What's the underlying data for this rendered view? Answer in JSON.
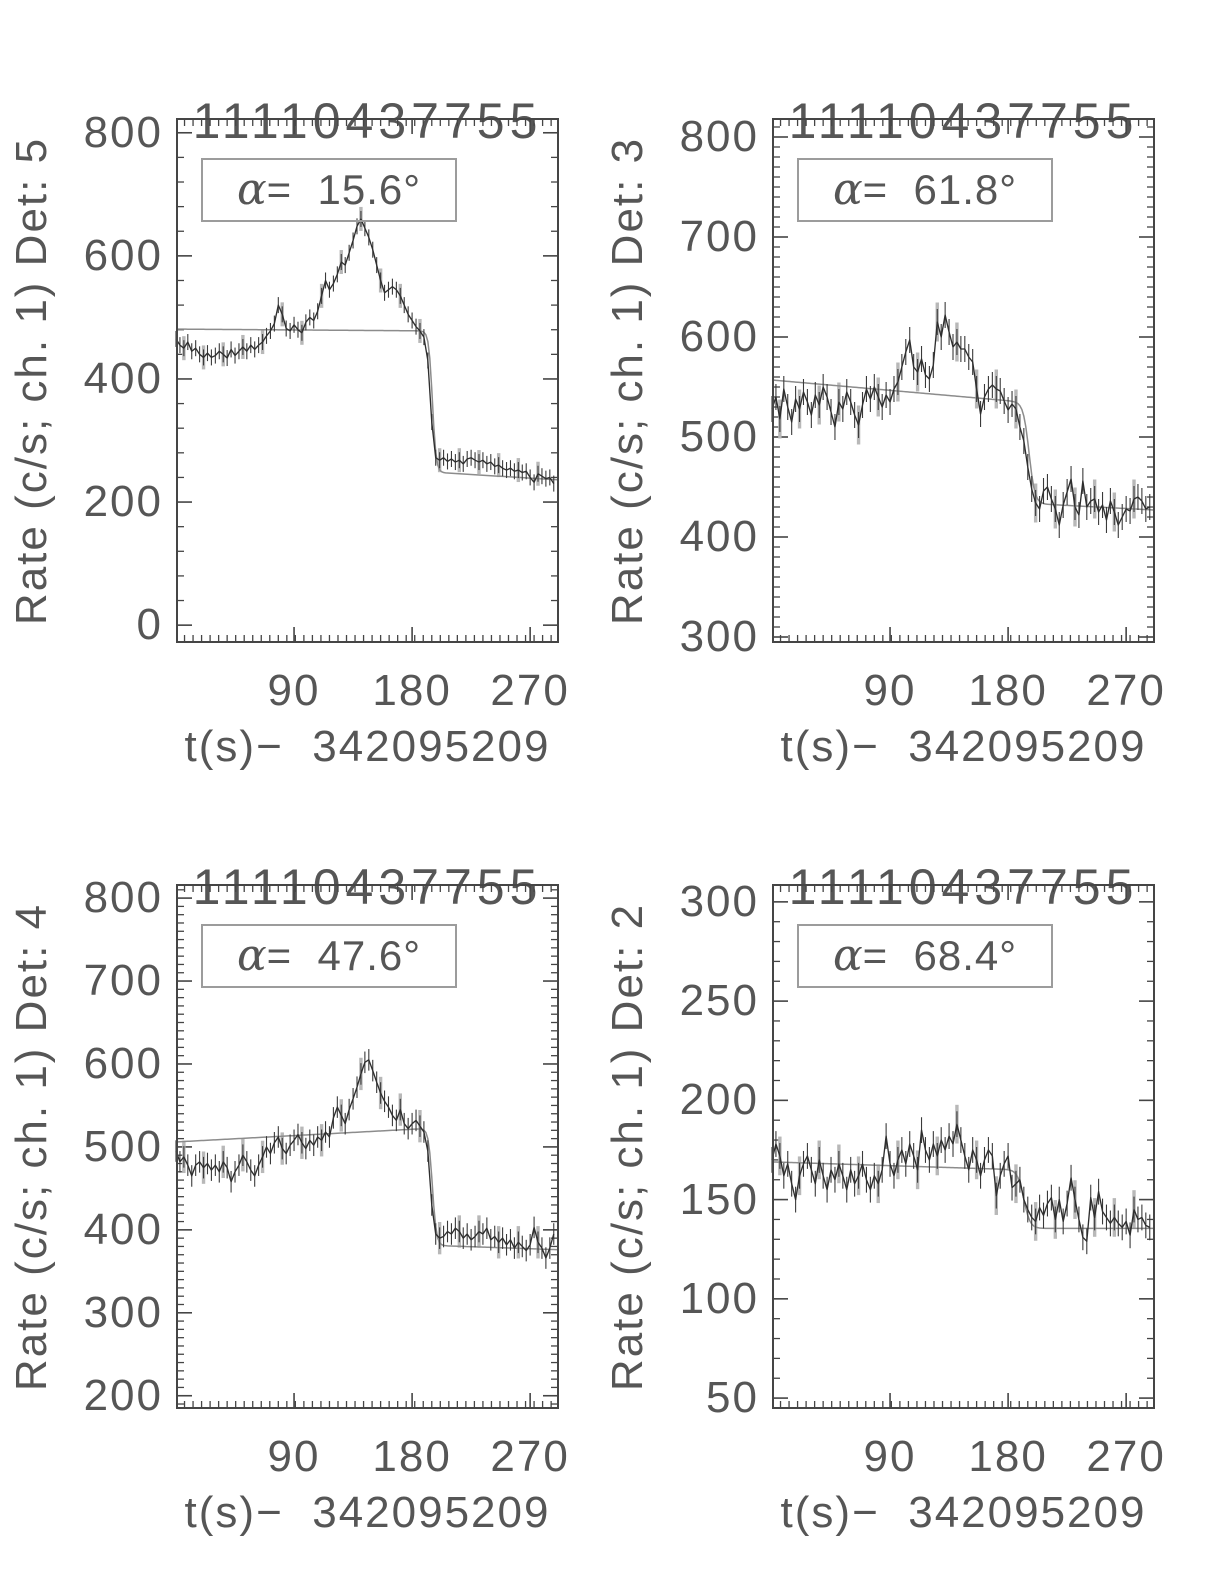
{
  "figure": {
    "background": "#ffffff",
    "text_color": "#565656",
    "axis_color": "#454545",
    "data_color": "#2e2e2e",
    "model_color": "#8c8c8c",
    "errorbar_color": "#3a3a3a",
    "errorbar_gray_color": "#b8b8b8"
  },
  "chart_data": [
    {
      "type": "line",
      "title": "11110437755",
      "ylabel": "Rate (c/s; ch. 1) Det: 5",
      "xlabel": "t(s)−  342095209",
      "detector": 5,
      "alpha_deg": 15.6,
      "annotation": {
        "symbol": "α",
        "text": "=  15.6°"
      },
      "xlim": [
        0,
        292
      ],
      "ylim": [
        -29,
        824
      ],
      "xticks": [
        90,
        180,
        270
      ],
      "yticks": [
        0,
        200,
        400,
        600,
        800
      ],
      "x_minor_step": 6.5,
      "y_minor_step": 40,
      "x_start": 0,
      "x_step": 3,
      "y_err": 13,
      "values": [
        465,
        455,
        450,
        460,
        445,
        450,
        440,
        435,
        442,
        435,
        438,
        445,
        440,
        434,
        448,
        438,
        445,
        452,
        445,
        455,
        448,
        455,
        460,
        470,
        478,
        490,
        520,
        505,
        482,
        478,
        488,
        480,
        475,
        492,
        500,
        495,
        510,
        535,
        560,
        545,
        555,
        570,
        590,
        585,
        605,
        625,
        648,
        660,
        645,
        630,
        610,
        585,
        560,
        540,
        545,
        550,
        545,
        535,
        520,
        505,
        495,
        485,
        478,
        468,
        430,
        330,
        272,
        268,
        272,
        266,
        270,
        265,
        268,
        262,
        270,
        272,
        268,
        265,
        268,
        262,
        265,
        258,
        260,
        255,
        252,
        255,
        250,
        252,
        248,
        250,
        240,
        232,
        246,
        242,
        238,
        240,
        230
      ],
      "model": {
        "pre_intercept": 481,
        "pre_slope": -0.015,
        "drop_center": 195.5,
        "drop_width": 1.4,
        "post_intercept": 274.1,
        "post_slope": -0.1304
      }
    },
    {
      "type": "line",
      "title": "11110437755",
      "ylabel": "Rate (c/s; ch. 1) Det: 3",
      "xlabel": "t(s)−  342095209",
      "detector": 3,
      "alpha_deg": 61.8,
      "annotation": {
        "symbol": "α",
        "text": "=  61.8°"
      },
      "xlim": [
        0,
        292
      ],
      "ylim": [
        294,
        819
      ],
      "xticks": [
        90,
        180,
        270
      ],
      "yticks": [
        300,
        400,
        500,
        600,
        700,
        800
      ],
      "x_minor_step": 6.5,
      "y_minor_step": 10,
      "x_start": 0,
      "x_step": 3,
      "y_err": 13,
      "values": [
        528,
        540,
        518,
        548,
        530,
        515,
        538,
        528,
        545,
        535,
        522,
        542,
        532,
        550,
        540,
        525,
        510,
        535,
        528,
        545,
        535,
        522,
        512,
        532,
        548,
        538,
        550,
        540,
        530,
        542,
        535,
        548,
        555,
        570,
        585,
        597,
        570,
        565,
        578,
        562,
        558,
        572,
        615,
        600,
        622,
        605,
        590,
        595,
        588,
        588,
        580,
        575,
        548,
        523,
        540,
        548,
        552,
        548,
        546,
        536,
        527,
        533,
        528,
        510,
        496,
        470,
        448,
        434,
        428,
        446,
        450,
        438,
        428,
        412,
        432,
        445,
        458,
        430,
        422,
        456,
        430,
        436,
        438,
        425,
        432,
        417,
        436,
        425,
        412,
        420,
        428,
        426,
        438,
        440,
        436,
        428,
        430
      ],
      "model": {
        "pre_intercept": 557,
        "pre_slope": -0.115,
        "drop_center": 196,
        "drop_width": 2.2,
        "post_intercept": 447.1,
        "post_slope": -0.069
      }
    },
    {
      "type": "line",
      "title": "11110437755",
      "ylabel": "Rate (c/s; ch. 1) Det: 4",
      "xlabel": "t(s)−  342095209",
      "detector": 4,
      "alpha_deg": 47.6,
      "annotation": {
        "symbol": "α",
        "text": "=  47.6°"
      },
      "xlim": [
        0,
        292
      ],
      "ylim": [
        184,
        817
      ],
      "xticks": [
        90,
        180,
        270
      ],
      "yticks": [
        200,
        300,
        400,
        500,
        600,
        700,
        800
      ],
      "x_minor_step": 6.5,
      "y_minor_step": 10,
      "x_start": 0,
      "x_step": 3,
      "y_err": 13,
      "values": [
        495,
        482,
        488,
        478,
        465,
        478,
        482,
        475,
        480,
        472,
        478,
        470,
        482,
        475,
        458,
        470,
        478,
        490,
        482,
        472,
        465,
        478,
        488,
        500,
        492,
        505,
        512,
        498,
        492,
        502,
        508,
        515,
        505,
        498,
        508,
        502,
        512,
        508,
        518,
        512,
        535,
        548,
        538,
        528,
        545,
        558,
        572,
        588,
        602,
        605,
        592,
        578,
        565,
        555,
        548,
        538,
        532,
        545,
        528,
        522,
        528,
        532,
        525,
        518,
        495,
        430,
        395,
        390,
        392,
        398,
        395,
        402,
        398,
        390,
        395,
        388,
        392,
        398,
        395,
        402,
        388,
        392,
        385,
        390,
        382,
        388,
        378,
        385,
        380,
        375,
        382,
        403,
        385,
        378,
        366,
        378,
        395
      ],
      "model": {
        "pre_intercept": 506,
        "pre_slope": 0.085,
        "drop_center": 195.5,
        "drop_width": 1.5,
        "post_intercept": 391.9,
        "post_slope": -0.0543
      }
    },
    {
      "type": "line",
      "title": "11110437755",
      "ylabel": "Rate (c/s; ch. 1) Det: 2",
      "xlabel": "t(s)−  342095209",
      "detector": 2,
      "alpha_deg": 68.4,
      "annotation": {
        "symbol": "α",
        "text": "=  68.4°"
      },
      "xlim": [
        0,
        292
      ],
      "ylim": [
        44.5,
        309
      ],
      "xticks": [
        90,
        180,
        270
      ],
      "yticks": [
        50,
        100,
        150,
        200,
        250,
        300
      ],
      "x_minor_step": 6.5,
      "y_minor_step": 10,
      "x_start": 0,
      "x_step": 3,
      "y_err": 6.5,
      "values": [
        170,
        178,
        172,
        162,
        168,
        158,
        150,
        162,
        168,
        172,
        165,
        158,
        170,
        162,
        155,
        165,
        160,
        168,
        162,
        155,
        165,
        158,
        162,
        168,
        160,
        155,
        162,
        158,
        165,
        182,
        168,
        162,
        170,
        175,
        168,
        178,
        172,
        165,
        185,
        175,
        170,
        178,
        172,
        180,
        175,
        182,
        178,
        188,
        180,
        172,
        165,
        175,
        170,
        162,
        170,
        175,
        172,
        152,
        162,
        168,
        172,
        156,
        158,
        160,
        150,
        145,
        141,
        139,
        146,
        142,
        148,
        151,
        140,
        150,
        139,
        148,
        161,
        150,
        140,
        131,
        129,
        151,
        141,
        154,
        144,
        141,
        138,
        141,
        138,
        136,
        139,
        132,
        145,
        140,
        141,
        137,
        136
      ],
      "model": {
        "pre_intercept": 169,
        "pre_slope": -0.021,
        "drop_center": 192,
        "drop_width": 2.4,
        "post_intercept": 135.5,
        "post_slope": 0
      }
    }
  ]
}
